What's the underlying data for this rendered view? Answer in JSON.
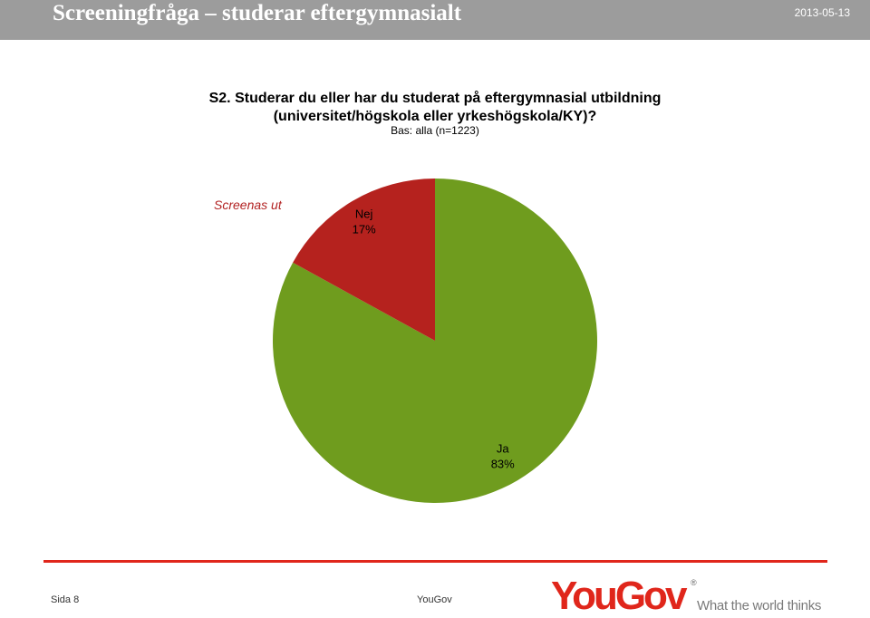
{
  "header": {
    "title": "Screeningfråga – studerar eftergymnasialt",
    "date": "2013-05-13"
  },
  "question": {
    "line1": "S2. Studerar du eller har du studerat på eftergymnasial utbildning",
    "line2": "(universitet/högskola eller yrkeshögskola/KY)?",
    "base": "Bas: alla (n=1223)"
  },
  "annotation": {
    "screen_out": "Screenas ut"
  },
  "colors": {
    "header_bg": "#9c9c9c",
    "accent": "#e0261b",
    "ja": "#6f9c1e",
    "nej": "#b5221e"
  },
  "chart_data": {
    "type": "pie",
    "slices": [
      {
        "label": "Ja",
        "value": 83,
        "display": "83%",
        "color": "#6f9c1e"
      },
      {
        "label": "Nej",
        "value": 17,
        "display": "17%",
        "color": "#b5221e"
      }
    ],
    "title": "S2. Studerar du eller har du studerat på eftergymnasial utbildning (universitet/högskola eller yrkeshögskola/KY)?",
    "subtitle": "Bas: alla (n=1223)",
    "legend": "none"
  },
  "footer": {
    "page": "Sida 8",
    "company": "YouGov",
    "logo_word": "YouGov",
    "logo_reg": "®",
    "tagline": "What the world thinks"
  }
}
